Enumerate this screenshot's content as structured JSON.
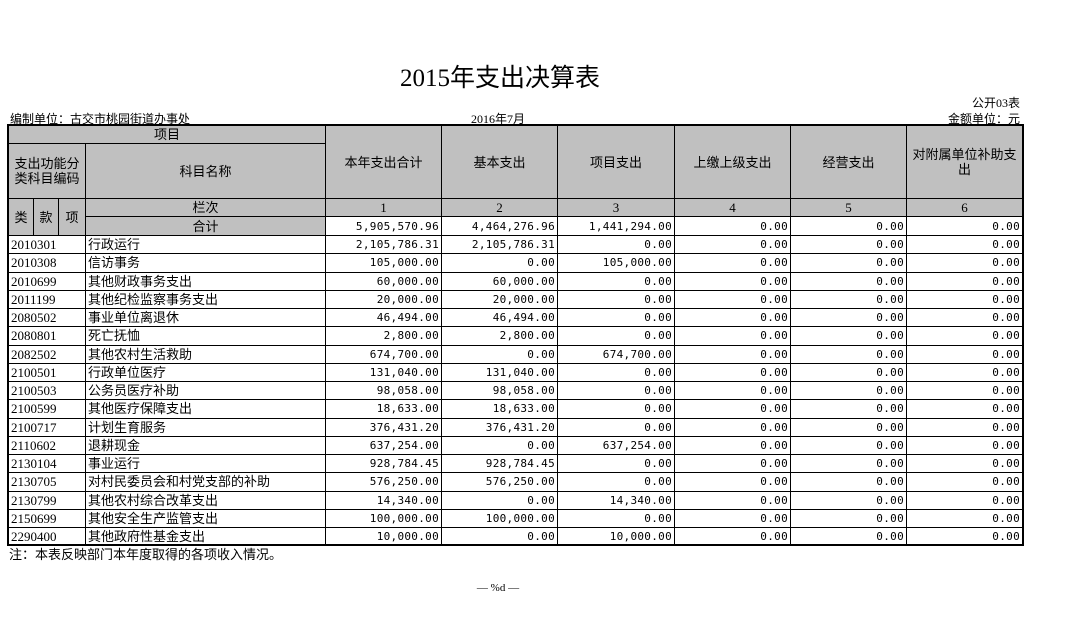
{
  "header": {
    "title": "2015年支出决算表",
    "form_no": "公开03表",
    "unit": "编制单位：古交市桃园街道办事处",
    "date": "2016年7月",
    "currency": "金额单位：元"
  },
  "table": {
    "group_header": "项目",
    "code_header": "支出功能分类科目编码",
    "name_header": "科目名称",
    "columns": [
      "本年支出合计",
      "基本支出",
      "项目支出",
      "上缴上级支出",
      "经营支出",
      "对附属单位补助支出"
    ],
    "code_parts": [
      "类",
      "款",
      "项"
    ],
    "index_label": "栏次",
    "column_numbers": [
      1,
      2,
      3,
      4,
      5,
      6
    ],
    "total_label": "合计",
    "totals": [
      "5,905,570.96",
      "4,464,276.96",
      "1,441,294.00",
      "0.00",
      "0.00",
      "0.00"
    ],
    "rows": [
      [
        "2010301",
        "行政运行",
        "2,105,786.31",
        "2,105,786.31",
        "0.00",
        "0.00",
        "0.00",
        "0.00"
      ],
      [
        "2010308",
        "信访事务",
        "105,000.00",
        "0.00",
        "105,000.00",
        "0.00",
        "0.00",
        "0.00"
      ],
      [
        "2010699",
        "其他财政事务支出",
        "60,000.00",
        "60,000.00",
        "0.00",
        "0.00",
        "0.00",
        "0.00"
      ],
      [
        "2011199",
        "其他纪检监察事务支出",
        "20,000.00",
        "20,000.00",
        "0.00",
        "0.00",
        "0.00",
        "0.00"
      ],
      [
        "2080502",
        "事业单位离退休",
        "46,494.00",
        "46,494.00",
        "0.00",
        "0.00",
        "0.00",
        "0.00"
      ],
      [
        "2080801",
        "死亡抚恤",
        "2,800.00",
        "2,800.00",
        "0.00",
        "0.00",
        "0.00",
        "0.00"
      ],
      [
        "2082502",
        "其他农村生活救助",
        "674,700.00",
        "0.00",
        "674,700.00",
        "0.00",
        "0.00",
        "0.00"
      ],
      [
        "2100501",
        "行政单位医疗",
        "131,040.00",
        "131,040.00",
        "0.00",
        "0.00",
        "0.00",
        "0.00"
      ],
      [
        "2100503",
        "公务员医疗补助",
        "98,058.00",
        "98,058.00",
        "0.00",
        "0.00",
        "0.00",
        "0.00"
      ],
      [
        "2100599",
        "其他医疗保障支出",
        "18,633.00",
        "18,633.00",
        "0.00",
        "0.00",
        "0.00",
        "0.00"
      ],
      [
        "2100717",
        "计划生育服务",
        "376,431.20",
        "376,431.20",
        "0.00",
        "0.00",
        "0.00",
        "0.00"
      ],
      [
        "2110602",
        "退耕现金",
        "637,254.00",
        "0.00",
        "637,254.00",
        "0.00",
        "0.00",
        "0.00"
      ],
      [
        "2130104",
        "事业运行",
        "928,784.45",
        "928,784.45",
        "0.00",
        "0.00",
        "0.00",
        "0.00"
      ],
      [
        "2130705",
        "对村民委员会和村党支部的补助",
        "576,250.00",
        "576,250.00",
        "0.00",
        "0.00",
        "0.00",
        "0.00"
      ],
      [
        "2130799",
        "其他农村综合改革支出",
        "14,340.00",
        "0.00",
        "14,340.00",
        "0.00",
        "0.00",
        "0.00"
      ],
      [
        "2150699",
        "其他安全生产监管支出",
        "100,000.00",
        "100,000.00",
        "0.00",
        "0.00",
        "0.00",
        "0.00"
      ],
      [
        "2290400",
        "其他政府性基金支出",
        "10,000.00",
        "0.00",
        "10,000.00",
        "0.00",
        "0.00",
        "0.00"
      ]
    ]
  },
  "note": "注：本表反映部门本年度取得的各项收入情况。",
  "footer": "— %d —"
}
